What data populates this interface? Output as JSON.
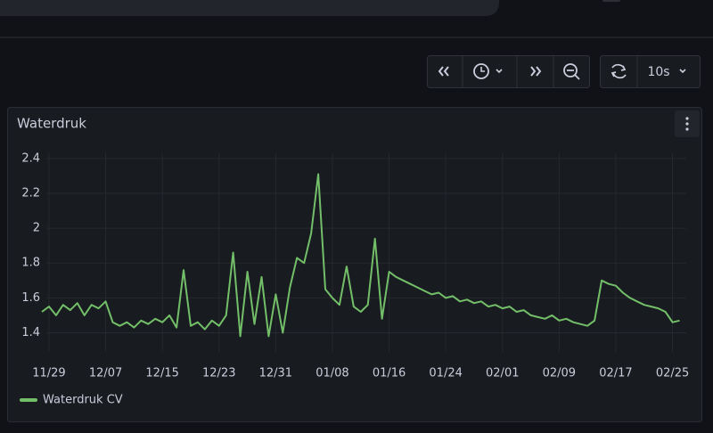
{
  "toolbar": {
    "refresh_interval": "10s"
  },
  "chart_data": {
    "type": "line",
    "title": "Waterdruk",
    "categories": [
      null,
      "11/29",
      null,
      null,
      null,
      null,
      null,
      null,
      null,
      "12/07",
      null,
      null,
      null,
      null,
      null,
      null,
      null,
      "12/15",
      null,
      null,
      null,
      null,
      null,
      null,
      null,
      "12/23",
      null,
      null,
      null,
      null,
      null,
      null,
      null,
      "12/31",
      null,
      null,
      null,
      null,
      null,
      null,
      null,
      "01/08",
      null,
      null,
      null,
      null,
      null,
      null,
      null,
      "01/16",
      null,
      null,
      null,
      null,
      null,
      null,
      null,
      "01/24",
      null,
      null,
      null,
      null,
      null,
      null,
      null,
      "02/01",
      null,
      null,
      null,
      null,
      null,
      null,
      null,
      "02/09",
      null,
      null,
      null,
      null,
      null,
      null,
      null,
      "02/17",
      null,
      null,
      null,
      null,
      null,
      null,
      null,
      "02/25",
      null
    ],
    "series": [
      {
        "name": "Waterdruk CV",
        "color": "#73bf69",
        "values": [
          1.52,
          1.55,
          1.5,
          1.56,
          1.53,
          1.57,
          1.5,
          1.56,
          1.54,
          1.58,
          1.46,
          1.44,
          1.46,
          1.43,
          1.47,
          1.45,
          1.48,
          1.46,
          1.5,
          1.43,
          1.76,
          1.44,
          1.46,
          1.42,
          1.47,
          1.44,
          1.5,
          1.86,
          1.38,
          1.75,
          1.45,
          1.72,
          1.38,
          1.62,
          1.4,
          1.66,
          1.83,
          1.8,
          1.97,
          2.31,
          1.65,
          1.6,
          1.56,
          1.78,
          1.55,
          1.52,
          1.56,
          1.94,
          1.48,
          1.75,
          1.72,
          1.7,
          1.68,
          1.66,
          1.64,
          1.62,
          1.63,
          1.6,
          1.61,
          1.58,
          1.59,
          1.57,
          1.58,
          1.55,
          1.56,
          1.54,
          1.55,
          1.52,
          1.53,
          1.5,
          1.49,
          1.48,
          1.5,
          1.47,
          1.48,
          1.46,
          1.45,
          1.44,
          1.47,
          1.7,
          1.68,
          1.67,
          1.63,
          1.6,
          1.58,
          1.56,
          1.55,
          1.54,
          1.52,
          1.46,
          1.47
        ]
      }
    ],
    "ylim": [
      1.29,
      2.43
    ],
    "yticks": [
      1.4,
      1.6,
      1.8,
      2,
      2.2,
      2.4
    ],
    "grid": true,
    "legend": "bottom-left"
  }
}
